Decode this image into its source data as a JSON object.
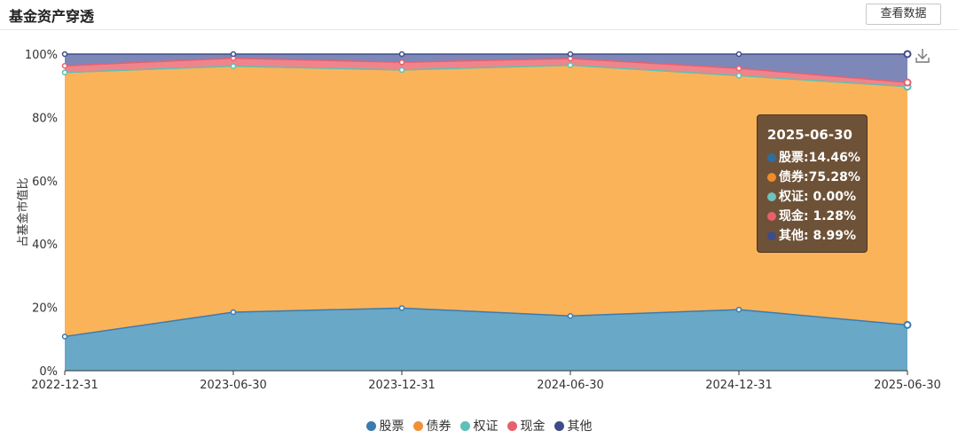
{
  "header": {
    "title": "基金资产穿透",
    "view_data_button": "查看数据"
  },
  "chart_data": {
    "type": "area",
    "stacked": true,
    "ylabel": "占基金市值比",
    "ylim": [
      0,
      100
    ],
    "yticks": [
      "0%",
      "20%",
      "40%",
      "60%",
      "80%",
      "100%"
    ],
    "categories": [
      "2022-12-31",
      "2023-06-30",
      "2023-12-31",
      "2024-06-30",
      "2024-12-31",
      "2025-06-30"
    ],
    "series": [
      {
        "name": "股票",
        "color": "#6aa8c8",
        "line_color": "#3a7bb0",
        "values": [
          10.8,
          18.5,
          19.8,
          17.3,
          19.3,
          14.46
        ]
      },
      {
        "name": "债券",
        "color": "#fbb35a",
        "line_color": "#f0913a",
        "values": [
          83.4,
          77.7,
          75.2,
          79.2,
          73.9,
          75.28
        ]
      },
      {
        "name": "权证",
        "color": "#83c6c0",
        "line_color": "#5ec0b8",
        "values": [
          0.0,
          0.0,
          0.0,
          0.0,
          0.0,
          0.0
        ]
      },
      {
        "name": "现金",
        "color": "#f0848c",
        "line_color": "#e8606e",
        "values": [
          2.1,
          2.5,
          2.4,
          2.1,
          2.3,
          1.28
        ]
      },
      {
        "name": "其他",
        "color": "#7d88b8",
        "line_color": "#3e4c8a",
        "values": [
          3.7,
          1.3,
          2.6,
          1.4,
          4.5,
          8.99
        ]
      }
    ],
    "legend_position": "bottom-center",
    "grid": true
  },
  "tooltip": {
    "date": "2025-06-30",
    "rows": [
      {
        "label": "股票:",
        "value": "14.46%",
        "color": "#2f6f9f"
      },
      {
        "label": "债券:",
        "value": "75.28%",
        "color": "#f08c2a"
      },
      {
        "label": "权证:",
        "value": " 0.00%",
        "color": "#6cc4bc"
      },
      {
        "label": "现金:",
        "value": " 1.28%",
        "color": "#e8606e"
      },
      {
        "label": "其他:",
        "value": " 8.99%",
        "color": "#3e4c8a"
      }
    ]
  },
  "toolbox": {
    "download_icon": "download-icon"
  }
}
